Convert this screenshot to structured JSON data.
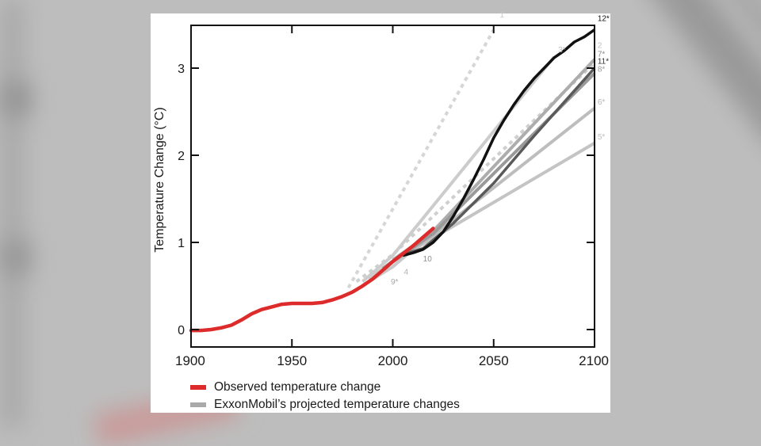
{
  "colors": {
    "observed": "#dd2a2a",
    "projection_legend": "#a9a9a9",
    "background": "#bdbdbd",
    "card": "#ffffff",
    "axis": "#111111"
  },
  "legend": {
    "items": [
      {
        "label": "Observed temperature change",
        "color": "#dd2a2a"
      },
      {
        "label": "ExxonMobil’s projected temperature changes",
        "color": "#a9a9a9"
      }
    ]
  },
  "chart_data": {
    "type": "line",
    "title": "",
    "xlabel": "",
    "ylabel": "Temperature Change (°C)",
    "xlim": [
      1900,
      2100
    ],
    "ylim": [
      -0.2,
      3.5
    ],
    "xticks": [
      1900,
      1950,
      2000,
      2050,
      2100
    ],
    "xtick_labels": [
      "1900",
      "1950",
      "2000",
      "2050",
      "2100"
    ],
    "yticks": [
      0,
      1,
      2,
      3
    ],
    "ytick_labels": [
      "0",
      "1",
      "2",
      "3"
    ],
    "grid": false,
    "legend_position": "bottom-left",
    "series": [
      {
        "name": "Observed temperature change",
        "role": "observed",
        "color": "#dd2a2a",
        "dashed": false,
        "x": [
          1900,
          1905,
          1910,
          1915,
          1920,
          1925,
          1930,
          1935,
          1940,
          1945,
          1950,
          1955,
          1960,
          1965,
          1970,
          1975,
          1980,
          1985,
          1990,
          1995,
          2000,
          2005,
          2010,
          2015,
          2020
        ],
        "y": [
          -0.01,
          -0.01,
          0.0,
          0.02,
          0.05,
          0.11,
          0.18,
          0.23,
          0.26,
          0.29,
          0.3,
          0.3,
          0.3,
          0.31,
          0.34,
          0.38,
          0.43,
          0.5,
          0.58,
          0.68,
          0.78,
          0.87,
          0.96,
          1.06,
          1.16
        ]
      },
      {
        "name": "1",
        "label": "1",
        "color": "#d6d6d6",
        "dashed": true,
        "x": [
          1978,
          2050
        ],
        "y": [
          0.48,
          3.44
        ]
      },
      {
        "name": "2",
        "label": "2",
        "color": "#cfcfcf",
        "dashed": true,
        "x": [
          1982,
          2000,
          2100
        ],
        "y": [
          0.55,
          0.86,
          3.06
        ]
      },
      {
        "name": "3*",
        "label": "3*",
        "color": "#cccccc",
        "dashed": false,
        "x": [
          1985,
          2000,
          2080
        ],
        "y": [
          0.55,
          0.85,
          3.13
        ]
      },
      {
        "name": "4",
        "label": "4",
        "color": "#cccccc",
        "dashed": false,
        "x": [
          1988,
          2000,
          2010
        ],
        "y": [
          0.58,
          0.78,
          0.96
        ]
      },
      {
        "name": "5*",
        "label": "5*",
        "color": "#c4c4c4",
        "dashed": false,
        "x": [
          2000,
          2020,
          2100
        ],
        "y": [
          0.78,
          1.05,
          2.14
        ]
      },
      {
        "name": "6*",
        "label": "6*",
        "color": "#bdbdbd",
        "dashed": false,
        "x": [
          2000,
          2020,
          2100
        ],
        "y": [
          0.78,
          1.08,
          2.54
        ]
      },
      {
        "name": "7*",
        "label": "7*",
        "color": "#adadad",
        "dashed": false,
        "x": [
          1995,
          2020,
          2100
        ],
        "y": [
          0.7,
          1.13,
          3.1
        ]
      },
      {
        "name": "8*",
        "label": "8*",
        "color": "#9a9a9a",
        "dashed": false,
        "x": [
          1995,
          2020,
          2100
        ],
        "y": [
          0.7,
          1.1,
          2.94
        ]
      },
      {
        "name": "9*",
        "label": "9*",
        "color": "#c8c8c8",
        "dashed": false,
        "x": [
          1988,
          2000,
          2010
        ],
        "y": [
          0.55,
          0.72,
          0.92
        ]
      },
      {
        "name": "10",
        "label": "10",
        "color": "#b5b5b5",
        "dashed": false,
        "x": [
          2000,
          2010,
          2018
        ],
        "y": [
          0.8,
          0.96,
          1.08
        ]
      },
      {
        "name": "11*",
        "label": "11*",
        "color": "#5a5a5a",
        "dashed": false,
        "x": [
          2005,
          2015,
          2030,
          2050,
          2070,
          2100
        ],
        "y": [
          0.86,
          0.93,
          1.22,
          1.68,
          2.22,
          3.0
        ]
      },
      {
        "name": "12*",
        "label": "12*",
        "color": "#111111",
        "dashed": false,
        "x": [
          2005,
          2010,
          2015,
          2020,
          2025,
          2030,
          2035,
          2040,
          2045,
          2050,
          2055,
          2060,
          2065,
          2070,
          2075,
          2080,
          2085,
          2090,
          2095,
          2100
        ],
        "y": [
          0.85,
          0.88,
          0.92,
          1.0,
          1.12,
          1.3,
          1.5,
          1.72,
          1.95,
          2.2,
          2.4,
          2.58,
          2.74,
          2.88,
          3.0,
          3.12,
          3.2,
          3.3,
          3.36,
          3.44
        ]
      }
    ],
    "annotations": [
      {
        "text": "1",
        "x": 2053,
        "y": 3.58,
        "color": "#c8c8c8"
      },
      {
        "text": "2",
        "x": 2101.5,
        "y": 3.23,
        "color": "#c0c0c0"
      },
      {
        "text": "3*",
        "x": 2082,
        "y": 3.18,
        "color": "#c0c0c0"
      },
      {
        "text": "4",
        "x": 2005.5,
        "y": 0.63,
        "color": "#b0b0b0"
      },
      {
        "text": "5*",
        "x": 2101.5,
        "y": 2.18,
        "color": "#c0c0c0"
      },
      {
        "text": "6*",
        "x": 2101.5,
        "y": 2.58,
        "color": "#b8b8b8"
      },
      {
        "text": "7*",
        "x": 2101.5,
        "y": 3.13,
        "color": "#8a8a8a"
      },
      {
        "text": "8*",
        "x": 2101.5,
        "y": 2.96,
        "color": "#9a9a9a"
      },
      {
        "text": "9*",
        "x": 1999,
        "y": 0.52,
        "color": "#a8a8a8"
      },
      {
        "text": "10",
        "x": 2015,
        "y": 0.78,
        "color": "#909090"
      },
      {
        "text": "11*",
        "x": 2101.5,
        "y": 3.05,
        "color": "#333333"
      },
      {
        "text": "12*",
        "x": 2101.5,
        "y": 3.54,
        "color": "#111111"
      }
    ]
  }
}
